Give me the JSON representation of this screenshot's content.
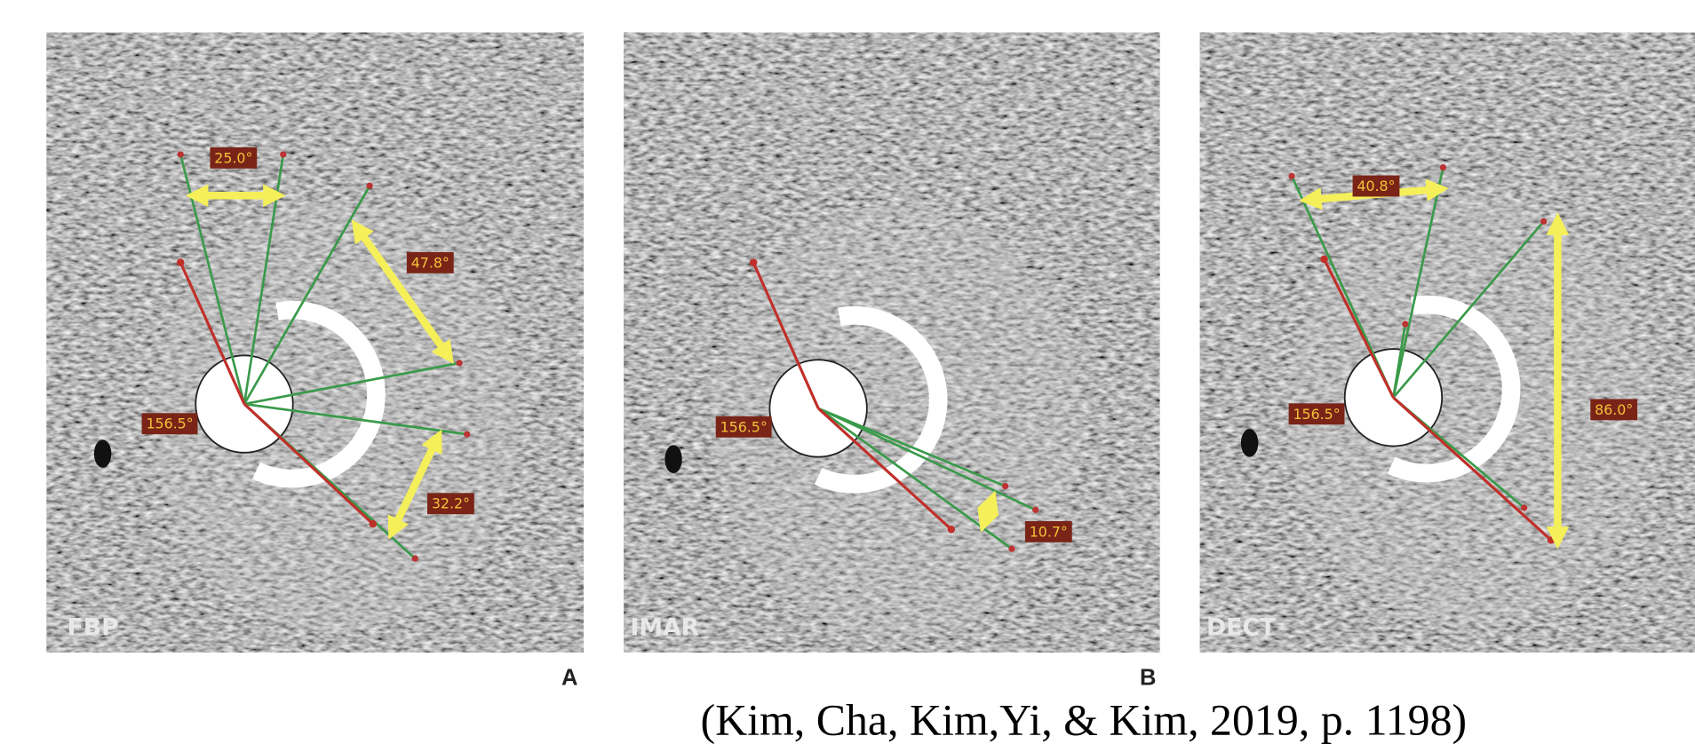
{
  "panels": [
    {
      "label": "FBP",
      "angles": [
        "25.0°",
        "47.8°",
        "156.5°",
        "32.2°"
      ]
    },
    {
      "label": "IMAR",
      "angles": [
        "156.5°",
        "10.7°"
      ]
    },
    {
      "label": "DECT",
      "angles": [
        "40.8°",
        "156.5°",
        "86.0°"
      ]
    }
  ],
  "figure_letters": [
    "A",
    "B"
  ],
  "citation": "(Kim, Cha, Kim,Yi, & Kim, 2019, p. 1198)"
}
